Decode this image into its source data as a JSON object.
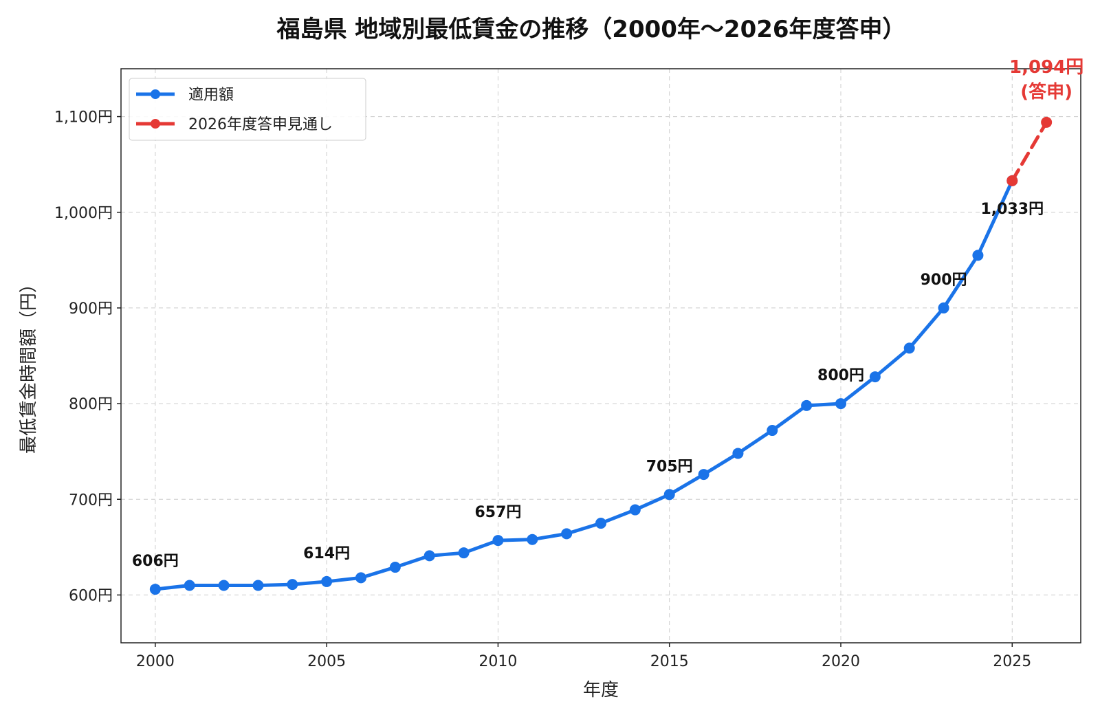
{
  "chart_data": {
    "type": "line",
    "title": "福島県 地域別最低賃金の推移（2000年〜2026年度答申）",
    "xlabel": "年度",
    "ylabel": "最低賃金時間額（円）",
    "xlim": [
      1999,
      2027
    ],
    "ylim": [
      550,
      1150
    ],
    "x_ticks": [
      2000,
      2005,
      2010,
      2015,
      2020,
      2025
    ],
    "y_ticks": [
      600,
      700,
      800,
      900,
      1000,
      1100
    ],
    "y_tick_labels": [
      "600円",
      "700円",
      "800円",
      "900円",
      "1,000円",
      "1,100円"
    ],
    "grid": true,
    "legend_position": "top-left",
    "series": [
      {
        "name": "適用額",
        "color": "#1a73e8",
        "style": "solid",
        "x": [
          2000,
          2001,
          2002,
          2003,
          2004,
          2005,
          2006,
          2007,
          2008,
          2009,
          2010,
          2011,
          2012,
          2013,
          2014,
          2015,
          2016,
          2017,
          2018,
          2019,
          2020,
          2021,
          2022,
          2023,
          2024,
          2025
        ],
        "values": [
          606,
          610,
          610,
          610,
          611,
          614,
          618,
          629,
          641,
          644,
          657,
          658,
          664,
          675,
          689,
          705,
          726,
          748,
          772,
          798,
          800,
          828,
          858,
          900,
          955,
          1033
        ]
      },
      {
        "name": "2026年度答申見通し",
        "color": "#e53935",
        "style": "dashed",
        "x": [
          2025,
          2026
        ],
        "values": [
          1033,
          1094
        ]
      }
    ],
    "annotations": [
      {
        "x": 2000,
        "y": 606,
        "text": "606円"
      },
      {
        "x": 2005,
        "y": 614,
        "text": "614円"
      },
      {
        "x": 2010,
        "y": 657,
        "text": "657円"
      },
      {
        "x": 2015,
        "y": 705,
        "text": "705円"
      },
      {
        "x": 2020,
        "y": 800,
        "text": "800円"
      },
      {
        "x": 2023,
        "y": 900,
        "text": "900円"
      },
      {
        "x": 2025,
        "y": 1033,
        "text": "1,033円"
      }
    ],
    "forecast_annotation": {
      "x": 2026,
      "y": 1094,
      "line1": "1,094円",
      "line2": "(答申)"
    }
  }
}
